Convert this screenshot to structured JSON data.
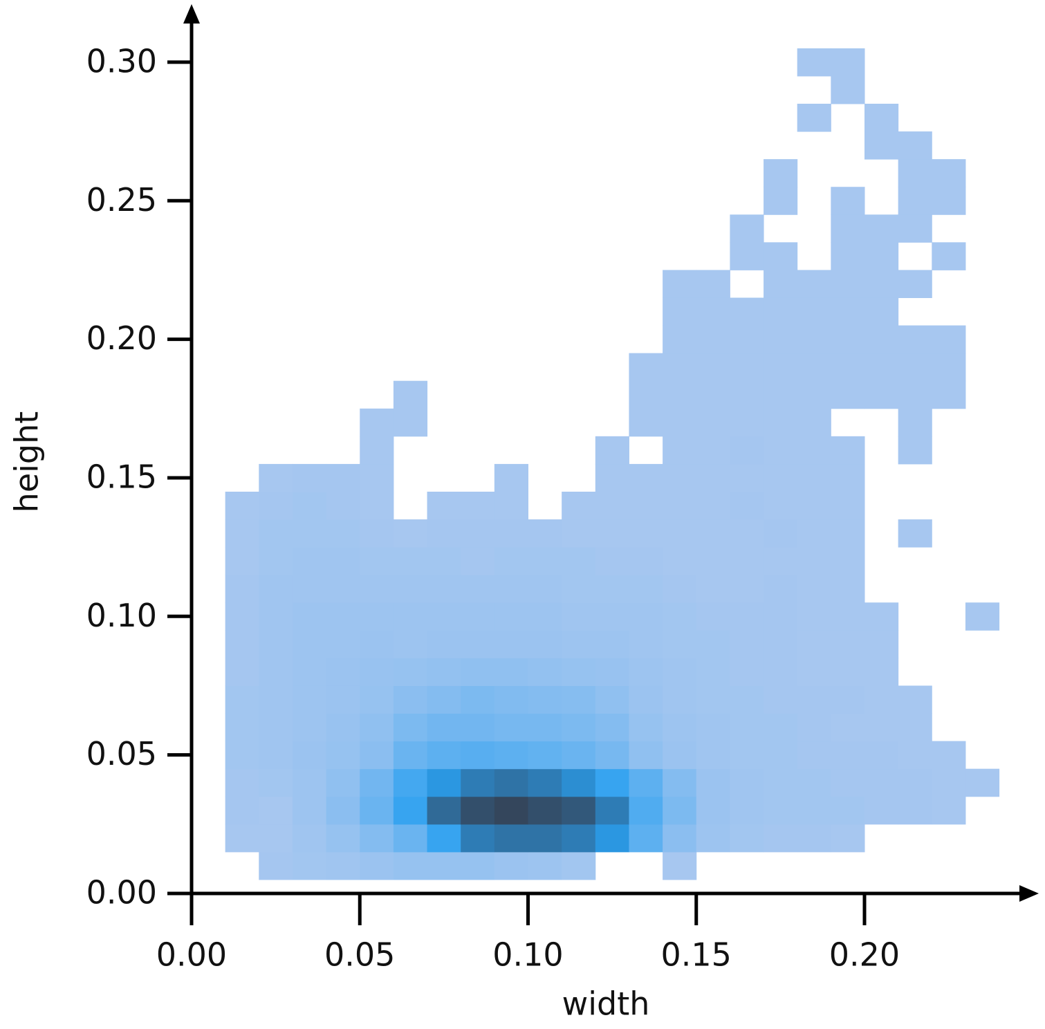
{
  "chart_data": {
    "type": "hist2d",
    "x_label": "width",
    "y_label": "height",
    "xlim": [
      0,
      0.245
    ],
    "ylim": [
      0,
      0.31
    ],
    "xticks": [
      {
        "value": 0,
        "label": "0.00"
      },
      {
        "value": 0.05,
        "label": "0.05"
      },
      {
        "value": 0.1,
        "label": "0.10"
      },
      {
        "value": 0.15,
        "label": "0.15"
      },
      {
        "value": 0.2,
        "label": "0.20"
      }
    ],
    "yticks": [
      {
        "value": 0,
        "label": "0.00"
      },
      {
        "value": 0.05,
        "label": "0.05"
      },
      {
        "value": 0.1,
        "label": "0.10"
      },
      {
        "value": 0.15,
        "label": "0.15"
      },
      {
        "value": 0.2,
        "label": "0.20"
      },
      {
        "value": 0.25,
        "label": "0.25"
      },
      {
        "value": 0.3,
        "label": "0.30"
      }
    ],
    "cmap": [
      "#aac8f0",
      "#2aa0f0",
      "#34465c"
    ],
    "xbins": [
      0.01,
      0.02,
      0.03,
      0.04,
      0.05,
      0.06,
      0.07,
      0.08,
      0.09,
      0.1,
      0.11,
      0.12,
      0.13,
      0.14,
      0.15,
      0.16,
      0.17,
      0.18,
      0.19,
      0.2,
      0.21,
      0.22,
      0.23,
      0.24
    ],
    "ybins": [
      0.005,
      0.015,
      0.025,
      0.035,
      0.045,
      0.055,
      0.065,
      0.075,
      0.085,
      0.095,
      0.105,
      0.115,
      0.125,
      0.135,
      0.145,
      0.155,
      0.165,
      0.175,
      0.185,
      0.195,
      0.205,
      0.215,
      0.225,
      0.235,
      0.245,
      0.255,
      0.265,
      0.275,
      0.285,
      0.295,
      0.305
    ],
    "counts": [
      [
        0,
        2,
        3,
        4,
        6,
        8,
        8,
        8,
        6,
        5,
        3,
        0,
        0,
        1,
        0,
        0,
        0,
        0,
        0,
        0,
        0,
        0,
        0
      ],
      [
        1,
        1,
        4,
        8,
        15,
        25,
        45,
        70,
        75,
        75,
        70,
        55,
        30,
        12,
        5,
        3,
        2,
        2,
        1,
        0,
        0,
        0,
        0
      ],
      [
        2,
        1,
        5,
        12,
        25,
        45,
        80,
        95,
        100,
        95,
        90,
        70,
        35,
        18,
        6,
        4,
        3,
        3,
        3,
        2,
        2,
        1,
        0
      ],
      [
        2,
        3,
        5,
        10,
        22,
        40,
        55,
        70,
        75,
        70,
        60,
        45,
        30,
        15,
        6,
        4,
        3,
        3,
        2,
        2,
        2,
        1,
        1
      ],
      [
        3,
        4,
        6,
        8,
        12,
        25,
        30,
        32,
        30,
        28,
        25,
        20,
        10,
        6,
        4,
        3,
        3,
        2,
        2,
        2,
        1,
        1,
        0
      ],
      [
        3,
        4,
        5,
        7,
        10,
        18,
        22,
        22,
        20,
        20,
        18,
        15,
        8,
        5,
        4,
        3,
        3,
        2,
        1,
        1,
        1,
        0,
        0
      ],
      [
        3,
        4,
        5,
        6,
        8,
        12,
        15,
        18,
        16,
        15,
        14,
        10,
        6,
        4,
        3,
        3,
        2,
        2,
        2,
        1,
        1,
        0,
        0
      ],
      [
        2,
        4,
        5,
        6,
        7,
        8,
        9,
        10,
        10,
        9,
        8,
        7,
        5,
        4,
        3,
        2,
        2,
        1,
        1,
        1,
        0,
        0,
        0
      ],
      [
        2,
        4,
        5,
        5,
        6,
        5,
        6,
        6,
        6,
        6,
        5,
        5,
        4,
        3,
        3,
        2,
        2,
        1,
        1,
        1,
        0,
        0,
        0
      ],
      [
        2,
        4,
        5,
        5,
        5,
        5,
        5,
        5,
        5,
        5,
        4,
        4,
        4,
        3,
        2,
        2,
        2,
        1,
        1,
        1,
        0,
        0,
        1
      ],
      [
        2,
        4,
        4,
        4,
        4,
        4,
        4,
        4,
        4,
        4,
        3,
        3,
        3,
        2,
        1,
        1,
        2,
        1,
        1,
        0,
        0,
        0,
        0
      ],
      [
        1,
        3,
        4,
        4,
        3,
        3,
        3,
        2,
        3,
        3,
        3,
        2,
        2,
        1,
        1,
        1,
        1,
        1,
        1,
        0,
        0,
        0,
        0
      ],
      [
        1,
        3,
        3,
        3,
        2,
        1,
        2,
        2,
        2,
        2,
        1,
        1,
        1,
        1,
        1,
        1,
        2,
        1,
        1,
        0,
        1,
        0,
        0
      ],
      [
        1,
        2,
        3,
        2,
        1,
        0,
        1,
        1,
        1,
        0,
        1,
        1,
        1,
        1,
        1,
        2,
        1,
        1,
        1,
        0,
        0,
        0,
        0
      ],
      [
        0,
        1,
        2,
        2,
        1,
        0,
        0,
        0,
        1,
        0,
        0,
        1,
        1,
        1,
        1,
        1,
        1,
        1,
        1,
        0,
        0,
        0,
        0
      ],
      [
        0,
        0,
        0,
        0,
        1,
        0,
        0,
        0,
        0,
        0,
        0,
        1,
        0,
        1,
        1,
        2,
        1,
        1,
        1,
        0,
        1,
        0,
        0
      ],
      [
        0,
        0,
        0,
        0,
        1,
        1,
        0,
        0,
        0,
        0,
        0,
        0,
        1,
        1,
        1,
        1,
        1,
        1,
        0,
        0,
        1,
        0,
        0
      ],
      [
        0,
        0,
        0,
        0,
        0,
        1,
        0,
        0,
        0,
        0,
        0,
        0,
        1,
        1,
        1,
        1,
        1,
        1,
        1,
        1,
        1,
        1,
        0
      ],
      [
        0,
        0,
        0,
        0,
        0,
        0,
        0,
        0,
        0,
        0,
        0,
        0,
        1,
        1,
        1,
        1,
        1,
        1,
        1,
        1,
        1,
        1,
        0
      ],
      [
        0,
        0,
        0,
        0,
        0,
        0,
        0,
        0,
        0,
        0,
        0,
        0,
        0,
        1,
        1,
        1,
        1,
        1,
        1,
        1,
        1,
        1,
        0
      ],
      [
        0,
        0,
        0,
        0,
        0,
        0,
        0,
        0,
        0,
        0,
        0,
        0,
        0,
        1,
        1,
        1,
        1,
        1,
        1,
        1,
        0,
        0,
        0
      ],
      [
        0,
        0,
        0,
        0,
        0,
        0,
        0,
        0,
        0,
        0,
        0,
        0,
        0,
        1,
        1,
        0,
        1,
        1,
        1,
        1,
        1,
        0,
        0
      ],
      [
        0,
        0,
        0,
        0,
        0,
        0,
        0,
        0,
        0,
        0,
        0,
        0,
        0,
        0,
        0,
        1,
        1,
        0,
        1,
        1,
        0,
        1,
        0
      ],
      [
        0,
        0,
        0,
        0,
        0,
        0,
        0,
        0,
        0,
        0,
        0,
        0,
        0,
        0,
        0,
        1,
        0,
        0,
        1,
        1,
        1,
        0,
        0
      ],
      [
        0,
        0,
        0,
        0,
        0,
        0,
        0,
        0,
        0,
        0,
        0,
        0,
        0,
        0,
        0,
        0,
        1,
        0,
        1,
        0,
        1,
        1,
        0
      ],
      [
        0,
        0,
        0,
        0,
        0,
        0,
        0,
        0,
        0,
        0,
        0,
        0,
        0,
        0,
        0,
        0,
        1,
        0,
        0,
        0,
        1,
        1,
        0
      ],
      [
        0,
        0,
        0,
        0,
        0,
        0,
        0,
        0,
        0,
        0,
        0,
        0,
        0,
        0,
        0,
        0,
        0,
        0,
        0,
        1,
        1,
        0,
        0
      ],
      [
        0,
        0,
        0,
        0,
        0,
        0,
        0,
        0,
        0,
        0,
        0,
        0,
        0,
        0,
        0,
        0,
        0,
        1,
        0,
        1,
        0,
        0,
        0
      ],
      [
        0,
        0,
        0,
        0,
        0,
        0,
        0,
        0,
        0,
        0,
        0,
        0,
        0,
        0,
        0,
        0,
        0,
        0,
        1,
        0,
        0,
        0,
        0
      ],
      [
        0,
        0,
        0,
        0,
        0,
        0,
        0,
        0,
        0,
        0,
        0,
        0,
        0,
        0,
        0,
        0,
        0,
        1,
        1,
        0,
        0,
        0,
        0
      ]
    ]
  }
}
